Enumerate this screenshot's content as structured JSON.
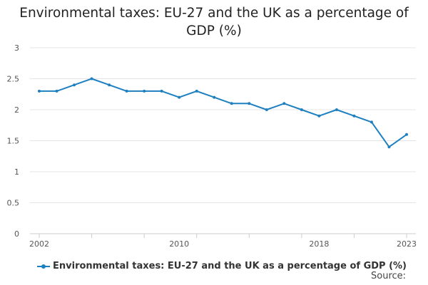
{
  "chart_data": {
    "type": "line",
    "title": "Environmental taxes: EU-27 and the UK as a percentage of GDP (%)",
    "xlabel": "",
    "ylabel": "",
    "x": [
      2002,
      2003,
      2004,
      2005,
      2006,
      2007,
      2008,
      2009,
      2010,
      2011,
      2012,
      2013,
      2014,
      2015,
      2016,
      2017,
      2018,
      2019,
      2020,
      2021,
      2022,
      2023
    ],
    "series": [
      {
        "name": "Environmental taxes: EU-27 and the UK as a percentage of GDP (%)",
        "color": "#1f80c0",
        "values": [
          2.3,
          2.3,
          2.4,
          2.5,
          2.4,
          2.3,
          2.3,
          2.3,
          2.2,
          2.3,
          2.2,
          2.1,
          2.1,
          2.0,
          2.1,
          2.0,
          1.9,
          2.0,
          1.9,
          1.8,
          1.4,
          1.6
        ]
      }
    ],
    "ylim": [
      0,
      3
    ],
    "yticks": [
      0,
      0.5,
      1,
      1.5,
      2,
      2.5,
      3
    ],
    "ytick_labels": [
      "0",
      "0.5",
      "1",
      "1.5",
      "2",
      "2.5",
      "3"
    ],
    "xtick_labels": [
      "2002",
      "2010",
      "2018",
      "2023"
    ],
    "legend_position": "bottom-left",
    "grid": true
  },
  "source_label": "Source:",
  "colors": {
    "line": "#1f80c0",
    "grid": "#e4e4e4",
    "axis": "#cccccc"
  }
}
